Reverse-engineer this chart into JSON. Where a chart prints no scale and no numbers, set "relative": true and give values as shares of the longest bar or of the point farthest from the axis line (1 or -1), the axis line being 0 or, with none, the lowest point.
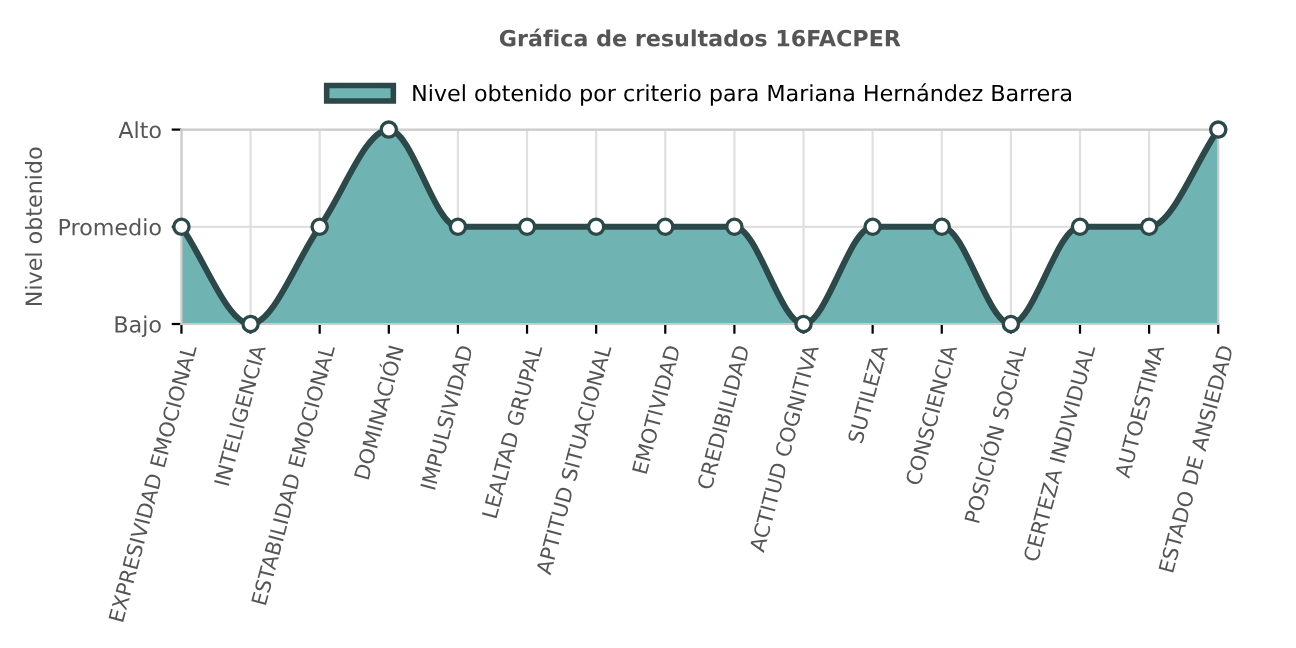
{
  "chart_data": {
    "type": "area",
    "title": "Gráfica de resultados 16FACPER",
    "ylabel": "Nivel obtenido",
    "categories": [
      "EXPRESIVIDAD EMOCIONAL",
      "INTELIGENCIA",
      "ESTABILIDAD EMOCIONAL",
      "DOMINACIÓN",
      "IMPULSIVIDAD",
      "LEALTAD GRUPAL",
      "APTITUD SITUACIONAL",
      "EMOTIVIDAD",
      "CREDIBILIDAD",
      "ACTITUD COGNITIVA",
      "SUTILEZA",
      "CONSCIENCIA",
      "POSICIÓN SOCIAL",
      "CERTEZA INDIVIDUAL",
      "AUTOESTIMA",
      "ESTADO DE ANSIEDAD"
    ],
    "series": [
      {
        "name": "Nivel obtenido por criterio para Mariana Hernández Barrera",
        "color": "#6fb3b3",
        "values": [
          0.5,
          0,
          0.5,
          1,
          0.5,
          0.5,
          0.5,
          0.5,
          0.5,
          0,
          0.5,
          0.5,
          0,
          0.5,
          0.5,
          1
        ]
      }
    ],
    "relative": true,
    "annotations": [
      "Bajo",
      "Promedio",
      "Alto"
    ],
    "grid": true,
    "legend": "top",
    "marker": "circle",
    "line_style": "solid"
  }
}
